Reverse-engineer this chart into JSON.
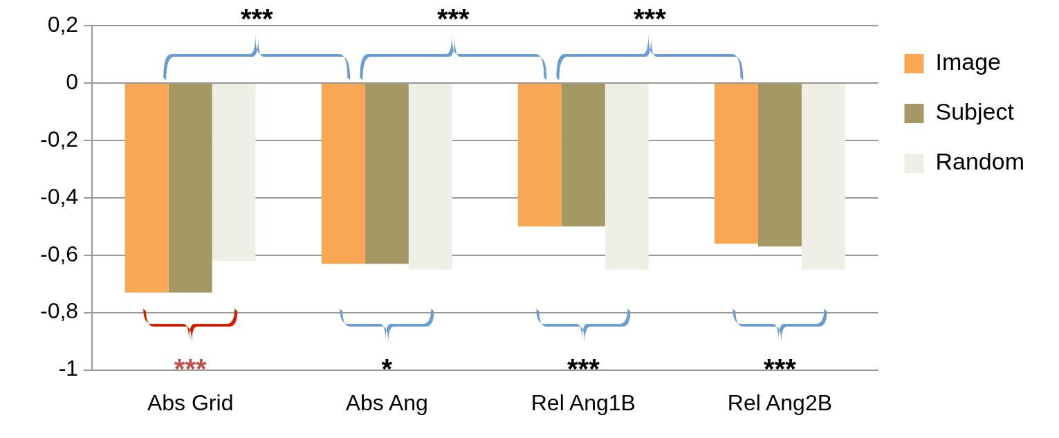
{
  "chart_data": {
    "type": "bar",
    "categories": [
      "Abs Grid",
      "Abs Ang",
      "Rel Ang1B",
      "Rel Ang2B"
    ],
    "series": [
      {
        "name": "Image",
        "color": "#f9a755",
        "values": [
          -0.73,
          -0.63,
          -0.5,
          -0.56
        ]
      },
      {
        "name": "Subject",
        "color": "#a49865",
        "values": [
          -0.73,
          -0.63,
          -0.5,
          -0.57
        ]
      },
      {
        "name": "Random",
        "color": "#efefe6",
        "values": [
          -0.62,
          -0.65,
          -0.65,
          -0.65
        ]
      }
    ],
    "ylim": [
      -1,
      0.2
    ],
    "yticks": [
      {
        "value": 0.2,
        "label": "0,2"
      },
      0,
      {
        "value": -0.2,
        "label": "-0,2"
      },
      {
        "value": -0.4,
        "label": "-0,4"
      },
      {
        "value": -0.6,
        "label": "-0,6"
      },
      {
        "value": -0.8,
        "label": "-0,8"
      },
      -1
    ],
    "grid": "y",
    "legend": "right",
    "annotations": [
      "***",
      "***",
      "***",
      "***",
      "*",
      "***",
      "***"
    ]
  }
}
